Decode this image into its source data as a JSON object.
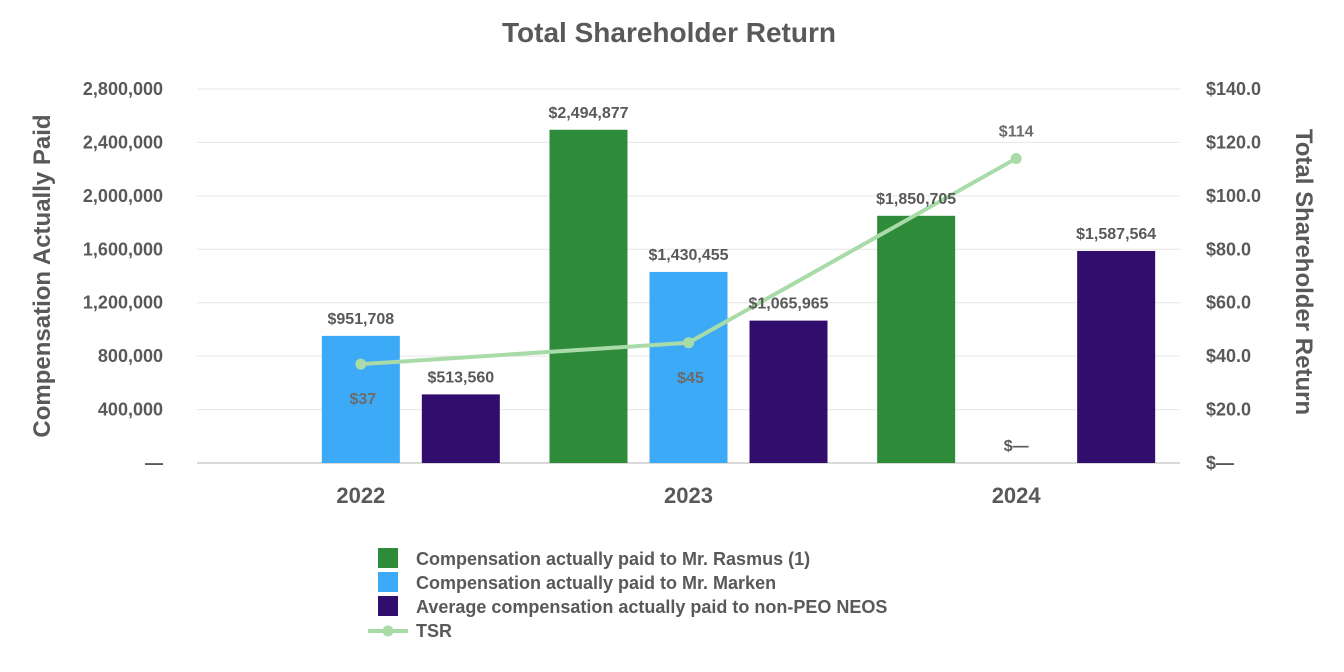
{
  "chart_data": {
    "type": "bar",
    "title": "Total Shareholder Return",
    "ylabel": "Compensation Actually Paid",
    "y2label": "Total Shareholder Return",
    "categories": [
      "2022",
      "2023",
      "2024"
    ],
    "ylim": [
      0,
      2800000
    ],
    "y2lim": [
      0,
      140
    ],
    "yticks": [
      {
        "value": 0,
        "label": "—"
      },
      {
        "value": 400000,
        "label": "400,000"
      },
      {
        "value": 800000,
        "label": "800,000"
      },
      {
        "value": 1200000,
        "label": "1,200,000"
      },
      {
        "value": 1600000,
        "label": "1,600,000"
      },
      {
        "value": 2000000,
        "label": "2,000,000"
      },
      {
        "value": 2400000,
        "label": "2,400,000"
      },
      {
        "value": 2800000,
        "label": "2,800,000"
      }
    ],
    "y2ticks": [
      {
        "value": 0,
        "label": "$—"
      },
      {
        "value": 20,
        "label": "$20.0"
      },
      {
        "value": 40,
        "label": "$40.0"
      },
      {
        "value": 60,
        "label": "$60.0"
      },
      {
        "value": 80,
        "label": "$80.0"
      },
      {
        "value": 100,
        "label": "$100.0"
      },
      {
        "value": 120,
        "label": "$120.0"
      },
      {
        "value": 140,
        "label": "$140.0"
      }
    ],
    "series": [
      {
        "name": "Compensation actually paid to Mr. Rasmus (1)",
        "color": "#2e8b3a",
        "values": [
          null,
          2494877,
          1850705
        ],
        "labels": [
          "",
          "$2,494,877",
          "$1,850,705"
        ]
      },
      {
        "name": "Compensation actually paid to Mr. Marken",
        "color": "#3daaf7",
        "values": [
          951708,
          1430455,
          0
        ],
        "labels": [
          "$951,708",
          "$1,430,455",
          "$—"
        ]
      },
      {
        "name": "Average compensation actually paid to non-PEO NEOS",
        "color": "#310d6e",
        "values": [
          513560,
          1065965,
          1587564
        ],
        "labels": [
          "$513,560",
          "$1,065,965",
          "$1,587,564"
        ]
      }
    ],
    "line": {
      "name": "TSR",
      "color": "#a8dba8",
      "axis": "right",
      "values": [
        37,
        45,
        114
      ],
      "labels": [
        "$37",
        "$45",
        "$114"
      ]
    },
    "legend_position": "bottom"
  }
}
